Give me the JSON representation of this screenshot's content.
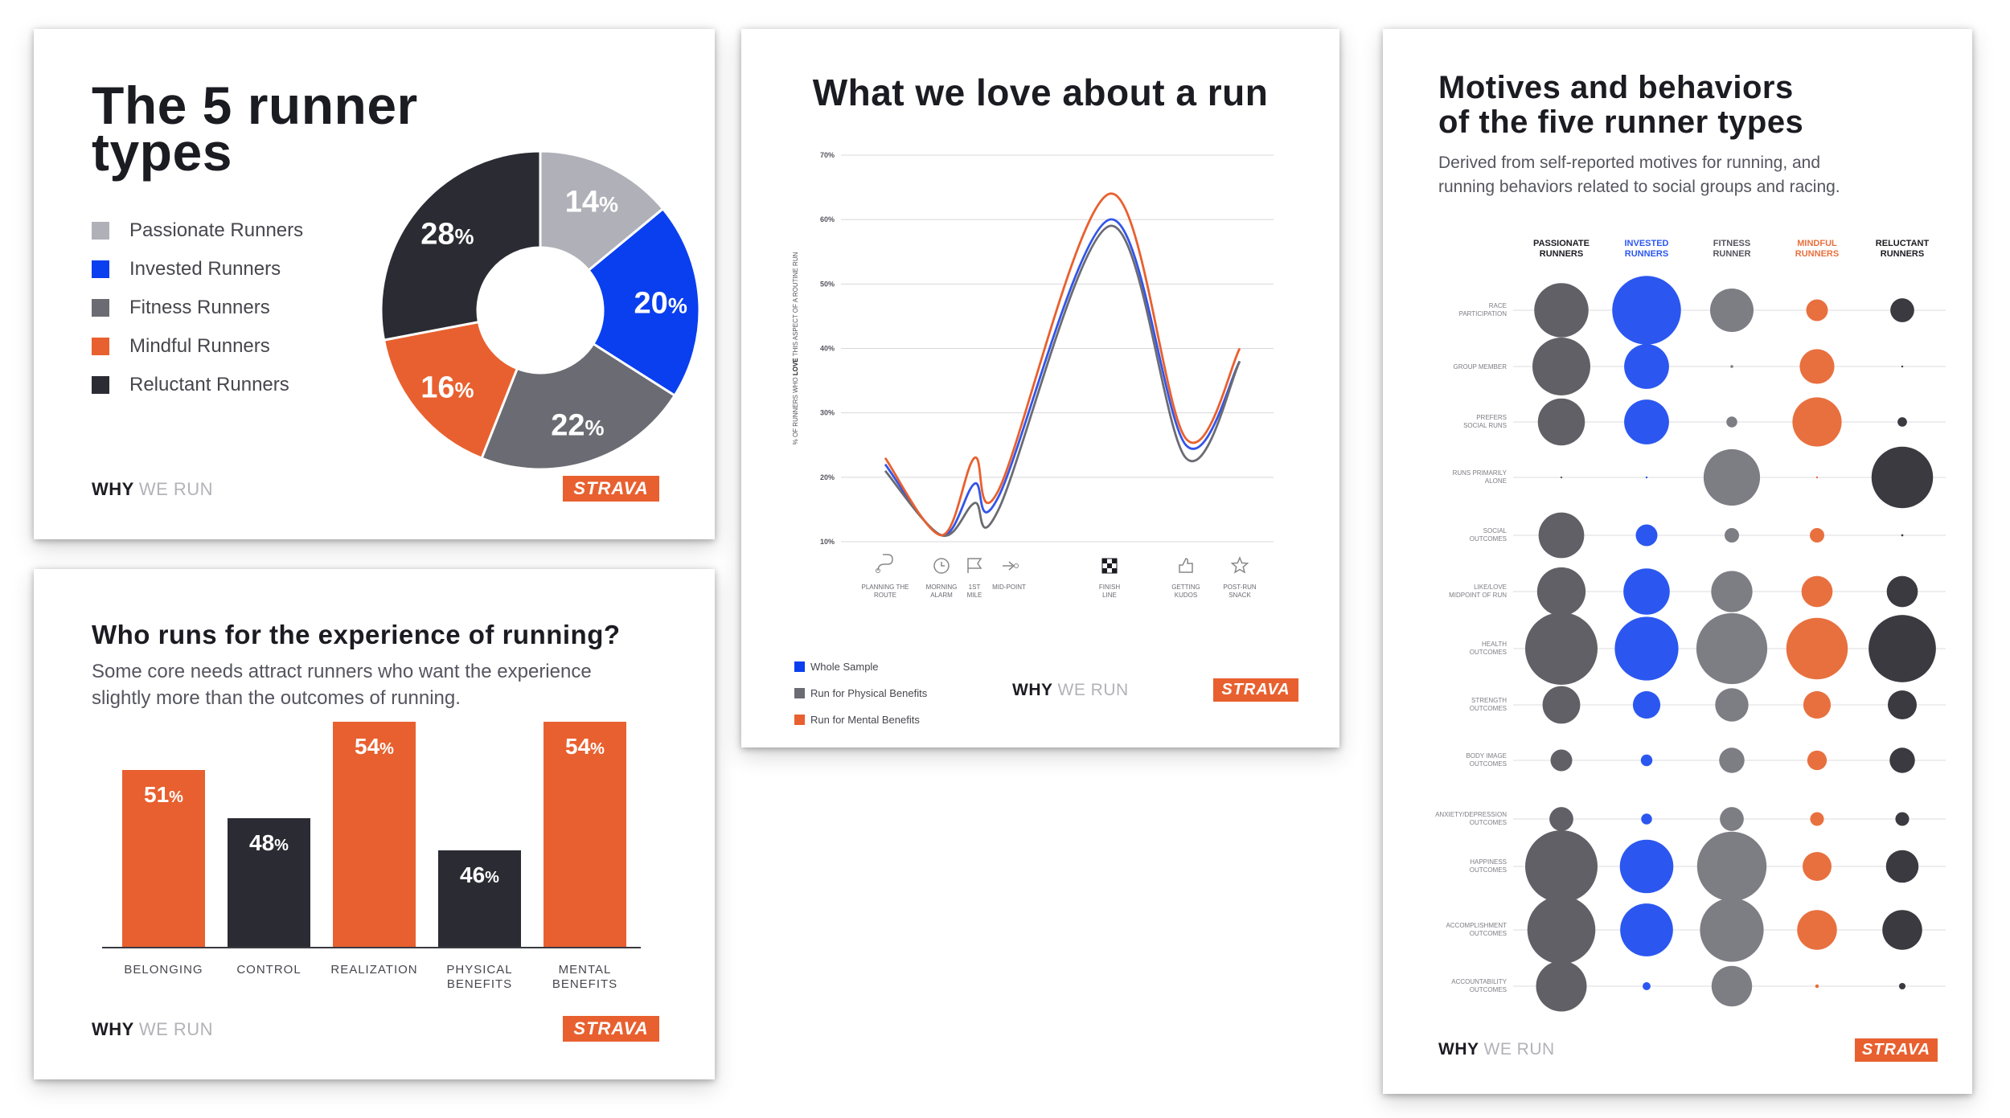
{
  "brand": {
    "why": "WHY",
    "we_run": "WE RUN",
    "strava": "STRAVA"
  },
  "colors": {
    "passionate": "#b0b0b8",
    "invested": "#0a3fef",
    "fitness": "#6b6b73",
    "mindful": "#e8602f",
    "reluctant": "#2b2b33",
    "bubble_passionate": "#606066",
    "bubble_invested": "#2b57f0",
    "bubble_fitness": "#7d7d84",
    "bubble_mindful": "#e8703f",
    "bubble_reluctant": "#3a3a40"
  },
  "donut_card": {
    "title_line1": "The 5 runner",
    "title_line2": "types",
    "legend": [
      {
        "label": "Passionate Runners",
        "color": "#b0b0b8"
      },
      {
        "label": "Invested Runners",
        "color": "#0a3fef"
      },
      {
        "label": "Fitness Runners",
        "color": "#6b6b73"
      },
      {
        "label": "Mindful Runners",
        "color": "#e8602f"
      },
      {
        "label": "Reluctant Runners",
        "color": "#2b2b33"
      }
    ]
  },
  "bars_card": {
    "title": "Who runs for the experience of running?",
    "subtitle_line1": "Some core needs attract runners who want the experience",
    "subtitle_line2": "slightly more than the outcomes of running."
  },
  "line_card": {
    "title": "What we love about a run",
    "ylabel_parts": [
      "% OF RUNNERS WHO ",
      "LOVE",
      " THIS ASPECT OF A ROUTINE RUN"
    ],
    "legend": [
      {
        "label": "Whole Sample",
        "color": "#0a3fef"
      },
      {
        "label": "Run for Physical Benefits",
        "color": "#6b6b73"
      },
      {
        "label": "Run for Mental Benefits",
        "color": "#e8602f"
      }
    ]
  },
  "bubble_card": {
    "title_line1": "Motives and behaviors",
    "title_line2": "of the five runner types",
    "subtitle_line1": "Derived from self-reported motives for running, and",
    "subtitle_line2": "running behaviors related to social groups and racing."
  },
  "chart_data": [
    {
      "type": "pie",
      "title": "The 5 runner types",
      "labels": [
        "Passionate Runners",
        "Invested Runners",
        "Fitness Runners",
        "Mindful Runners",
        "Reluctant Runners"
      ],
      "values": [
        14,
        20,
        22,
        16,
        28
      ],
      "unit": "%",
      "colors": [
        "#b0b0b8",
        "#0a3fef",
        "#6b6b73",
        "#e8602f",
        "#2b2b33"
      ],
      "legend": "left"
    },
    {
      "type": "bar",
      "title": "Who runs for the experience of running?",
      "categories": [
        "BELONGING",
        "CONTROL",
        "REALIZATION",
        "PHYSICAL BENEFITS",
        "MENTAL BENEFITS"
      ],
      "values": [
        51,
        48,
        54,
        46,
        54
      ],
      "unit": "%",
      "colors": [
        "#e8602f",
        "#2b2b33",
        "#e8602f",
        "#2b2b33",
        "#e8602f"
      ],
      "ylim": [
        40,
        56
      ]
    },
    {
      "type": "line",
      "title": "What we love about a run",
      "ylabel": "% OF RUNNERS WHO LOVE THIS ASPECT OF A ROUTINE RUN",
      "x": [
        "PLANNING THE ROUTE",
        "MORNING ALARM",
        "1ST MILE",
        "MID-POINT",
        "FINISH LINE",
        "GETTING KUDOS",
        "POST-RUN SNACK"
      ],
      "yticks": [
        "10%",
        "20%",
        "30%",
        "40%",
        "50%",
        "60%",
        "70%"
      ],
      "ylim": [
        10,
        70
      ],
      "series": [
        {
          "name": "Whole Sample",
          "color": "#3355e8",
          "values": [
            22,
            11,
            19,
            17,
            60,
            25,
            38
          ]
        },
        {
          "name": "Run for Physical Benefits",
          "color": "#6b6b73",
          "values": [
            21,
            11,
            16,
            15,
            59,
            23,
            38
          ]
        },
        {
          "name": "Run for Mental Benefits",
          "color": "#e8602f",
          "values": [
            23,
            11,
            23,
            18,
            64,
            26,
            40
          ]
        }
      ],
      "grid": true,
      "legend": "bottom-left"
    },
    {
      "type": "scatter",
      "subtype": "bubble-matrix",
      "title": "Motives and behaviors of the five runner types",
      "columns": [
        {
          "line1": "PASSIONATE",
          "line2": "RUNNERS",
          "color": "#1b1b22"
        },
        {
          "line1": "INVESTED",
          "line2": "RUNNERS",
          "color": "#2b57f0"
        },
        {
          "line1": "FITNESS",
          "line2": "RUNNER",
          "color": "#55555f"
        },
        {
          "line1": "MINDFUL",
          "line2": "RUNNERS",
          "color": "#e8703f"
        },
        {
          "line1": "RELUCTANT",
          "line2": "RUNNERS",
          "color": "#1b1b22"
        }
      ],
      "rows": [
        {
          "line1": "RACE",
          "line2": "PARTICIPATION",
          "sizes": [
            0.75,
            0.95,
            0.6,
            0.3,
            0.33
          ]
        },
        {
          "line1": "GROUP MEMBER",
          "line2": "",
          "sizes": [
            0.8,
            0.62,
            0.04,
            0.48,
            0.01
          ]
        },
        {
          "line1": "PREFERS",
          "line2": "SOCIAL RUNS",
          "sizes": [
            0.65,
            0.62,
            0.15,
            0.68,
            0.13
          ]
        },
        {
          "line1": "RUNS PRIMARILY",
          "line2": "ALONE",
          "sizes": [
            0.02,
            0.02,
            0.78,
            0.01,
            0.85
          ]
        },
        {
          "line1": "SOCIAL",
          "line2": "OUTCOMES",
          "sizes": [
            0.63,
            0.3,
            0.2,
            0.2,
            0.03
          ]
        },
        {
          "line1": "LIKE/LOVE",
          "line2": "MIDPOINT OF RUN",
          "sizes": [
            0.67,
            0.64,
            0.57,
            0.43,
            0.43
          ]
        },
        {
          "line1": "HEALTH",
          "line2": "OUTCOMES",
          "sizes": [
            1.0,
            0.88,
            0.98,
            0.85,
            0.93
          ]
        },
        {
          "line1": "STRENGTH",
          "line2": "OUTCOMES",
          "sizes": [
            0.52,
            0.38,
            0.46,
            0.38,
            0.4
          ]
        },
        {
          "line1": "BODY IMAGE",
          "line2": "OUTCOMES",
          "sizes": [
            0.3,
            0.16,
            0.35,
            0.27,
            0.35
          ]
        },
        {
          "line1": "ANXIETY/DEPRESSION",
          "line2": "OUTCOMES",
          "sizes": [
            0.33,
            0.15,
            0.33,
            0.19,
            0.19
          ]
        },
        {
          "line1": "HAPPINESS",
          "line2": "OUTCOMES",
          "sizes": [
            1.0,
            0.74,
            0.96,
            0.4,
            0.45
          ]
        },
        {
          "line1": "ACCOMPLISHMENT",
          "line2": "OUTCOMES",
          "sizes": [
            0.94,
            0.73,
            0.88,
            0.55,
            0.55
          ]
        },
        {
          "line1": "ACCOUNTABILITY",
          "line2": "OUTCOMES",
          "sizes": [
            0.7,
            0.11,
            0.56,
            0.05,
            0.09
          ]
        }
      ]
    }
  ]
}
